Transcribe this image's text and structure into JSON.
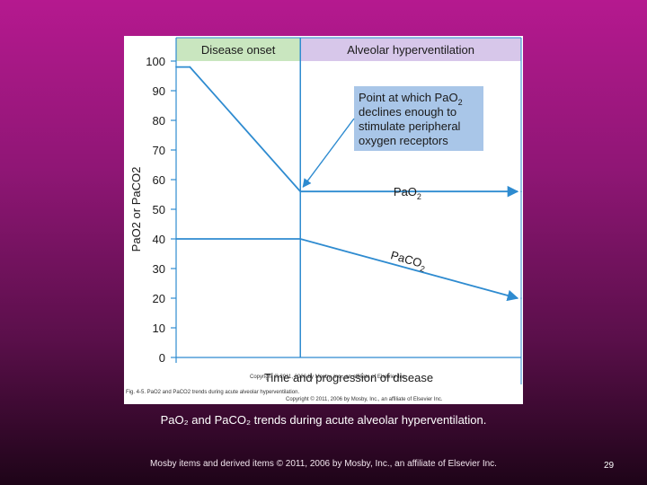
{
  "slide": {
    "caption": "PaO₂ and PaCO₂ trends during acute alveolar hyperventilation.",
    "footer_credit": "Mosby items and derived items © 2011, 2006 by Mosby, Inc., an affiliate of Elsevier Inc.",
    "page_number": "29"
  },
  "figure": {
    "fig_caption": "Fig. 4-5. PaO2 and PaCO2 trends during acute alveolar hyperventilation.",
    "copyright_line1": "Copyright © 2011, 2006 by Mosby, Inc., an affiliate of Elsevier Inc.",
    "copyright_line2": "Copyright © 2011, 2006 by Mosby, Inc., an affiliate of Elsevier Inc."
  },
  "colors": {
    "line": "#2e8bd0",
    "grid": "#2e8bd0",
    "header_onset": "#c9e6bf",
    "header_hypervent": "#d7c7ea",
    "note_box": "#a9c6e8"
  },
  "chart_data": {
    "type": "line",
    "title": "",
    "ylabel": "PaO2 or PaCO2",
    "xlabel": "Time and progression of disease",
    "ylim": [
      0,
      100
    ],
    "yticks": [
      "0",
      "10",
      "20",
      "30",
      "40",
      "50",
      "60",
      "70",
      "80",
      "90",
      "100"
    ],
    "phases": [
      "Disease onset",
      "Alveolar hyperventilation"
    ],
    "xlim": [
      0,
      100
    ],
    "phase_boundary_x": 36,
    "series": [
      {
        "name": "PaO2",
        "label": "PaO",
        "sub": "2",
        "x": [
          0,
          4,
          36,
          100
        ],
        "y": [
          98,
          98,
          56,
          56
        ]
      },
      {
        "name": "PaCO2",
        "label": "PaCO",
        "sub": "2",
        "x": [
          0,
          36,
          100
        ],
        "y": [
          40,
          40,
          20
        ]
      }
    ],
    "annotation": {
      "lines": [
        "Point at which PaO",
        "declines enough to",
        "stimulate peripheral",
        "oxygen receptors"
      ],
      "sub": "2",
      "target_x": 36,
      "target_y": 56
    }
  }
}
